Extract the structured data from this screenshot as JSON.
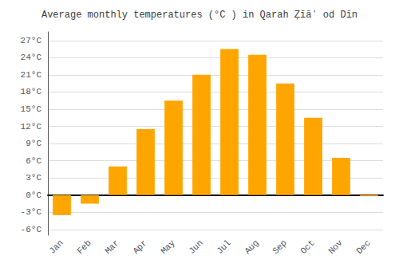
{
  "chart_data": {
    "type": "bar",
    "title": "Average monthly temperatures (°C ) in Qarah Ẓīāʼ od Dīn",
    "categories": [
      "Jan",
      "Feb",
      "Mar",
      "Apr",
      "May",
      "Jun",
      "Jul",
      "Aug",
      "Sep",
      "Oct",
      "Nov",
      "Dec"
    ],
    "values": [
      -3.5,
      -1.5,
      5.0,
      11.5,
      16.5,
      21.0,
      25.5,
      24.5,
      19.5,
      13.5,
      6.5,
      -0.2
    ],
    "color": "#FFA500",
    "ylim": [
      -7.0,
      28.5
    ],
    "yticks": [
      {
        "value": -6,
        "label": "-6°C"
      },
      {
        "value": -3,
        "label": "-3°C"
      },
      {
        "value": 0,
        "label": "0°C"
      },
      {
        "value": 3,
        "label": "3°C"
      },
      {
        "value": 6,
        "label": "6°C"
      },
      {
        "value": 9,
        "label": "9°C"
      },
      {
        "value": 12,
        "label": "12°C"
      },
      {
        "value": 15,
        "label": "15°C"
      },
      {
        "value": 18,
        "label": "18°C"
      },
      {
        "value": 21,
        "label": "21°C"
      },
      {
        "value": 24,
        "label": "24°C"
      },
      {
        "value": 27,
        "label": "27°C"
      }
    ],
    "grid": true
  }
}
